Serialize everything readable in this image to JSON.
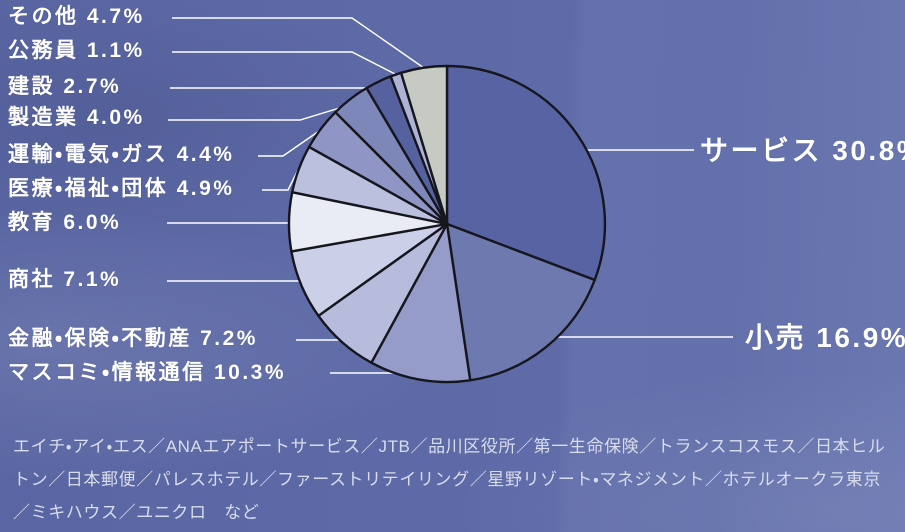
{
  "chart_data": {
    "type": "pie",
    "direction": "clockwise",
    "start_angle_deg": -90,
    "unit": "%",
    "outline_color": "#16161e",
    "leader_line_color": "#ffffff",
    "label_color": "#ffffff",
    "slices": [
      {
        "label": "サービス",
        "value": 30.8,
        "display": "サービス 30.8%",
        "color": "#5863a4"
      },
      {
        "label": "小売",
        "value": 16.9,
        "display": "小売 16.9%",
        "color": "#6e79b0"
      },
      {
        "label": "マスコミ・情報通信",
        "value": 10.3,
        "display": "マスコミ・情報通信 10.3%",
        "color": "#969cca"
      },
      {
        "label": "金融・保険・不動産",
        "value": 7.2,
        "display": "金融・保険・不動産 7.2%",
        "color": "#b7bcdd"
      },
      {
        "label": "商社",
        "value": 7.1,
        "display": "商社 7.1%",
        "color": "#cbcfe7"
      },
      {
        "label": "教育",
        "value": 6.0,
        "display": "教育 6.0%",
        "color": "#e9ebf5"
      },
      {
        "label": "医療・福祉・団体",
        "value": 4.9,
        "display": "医療・福祉・団体 4.9%",
        "color": "#bac0de"
      },
      {
        "label": "運輸・電気・ガス",
        "value": 4.4,
        "display": "運輸・電気・ガス 4.4%",
        "color": "#8f96c5"
      },
      {
        "label": "製造業",
        "value": 4.0,
        "display": "製造業 4.0%",
        "color": "#7e87b9"
      },
      {
        "label": "建設",
        "value": 2.7,
        "display": "建設 2.7%",
        "color": "#56619f"
      },
      {
        "label": "公務員",
        "value": 1.1,
        "display": "公務員 1.1%",
        "color": "#aeb3d6"
      },
      {
        "label": "その他",
        "value": 4.7,
        "display": "その他 4.7%",
        "color": "#c6cac3"
      }
    ]
  },
  "footnote": "エイチ・アイ・エス／ANAエアポートサービス／JTB／品川区役所／第一生命保険／トランスコスモス／日本ヒルトン／日本郵便／パレスホテル／ファーストリテイリング／星野リゾート・マネジメント／ホテルオークラ東京／ミキハウス／ユニクロ　など",
  "background_color": "#5f6ba8"
}
